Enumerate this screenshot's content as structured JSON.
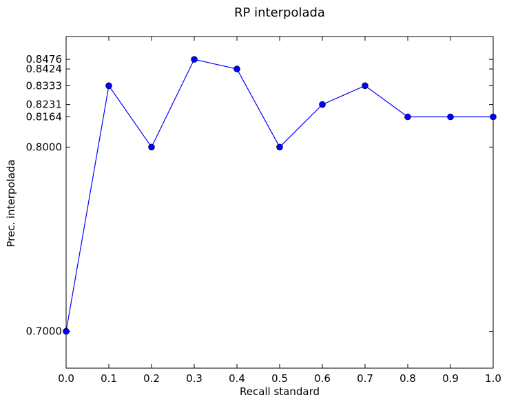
{
  "chart_data": {
    "type": "line",
    "title": "RP interpolada",
    "xlabel": "Recall standard",
    "ylabel": "Prec. interpolada",
    "x": [
      0.0,
      0.1,
      0.2,
      0.3,
      0.4,
      0.5,
      0.6,
      0.7,
      0.8,
      0.9,
      1.0
    ],
    "series": [
      {
        "values": [
          0.7,
          0.8333,
          0.8,
          0.8476,
          0.8424,
          0.8,
          0.8231,
          0.8333,
          0.8164,
          0.8164,
          0.8164
        ]
      }
    ],
    "xlim": [
      0.0,
      1.0
    ],
    "ylim": [
      0.68,
      0.86
    ],
    "xticks": [
      "0.0",
      "0.1",
      "0.2",
      "0.3",
      "0.4",
      "0.5",
      "0.6",
      "0.7",
      "0.8",
      "0.9",
      "1.0"
    ],
    "yticks": [
      "0.7000",
      "0.8000",
      "0.8164",
      "0.8231",
      "0.8333",
      "0.8424",
      "0.8476"
    ],
    "grid": false,
    "colors": {
      "line": "#0000ff",
      "marker": "#0000ff",
      "axes": "#000000"
    }
  }
}
